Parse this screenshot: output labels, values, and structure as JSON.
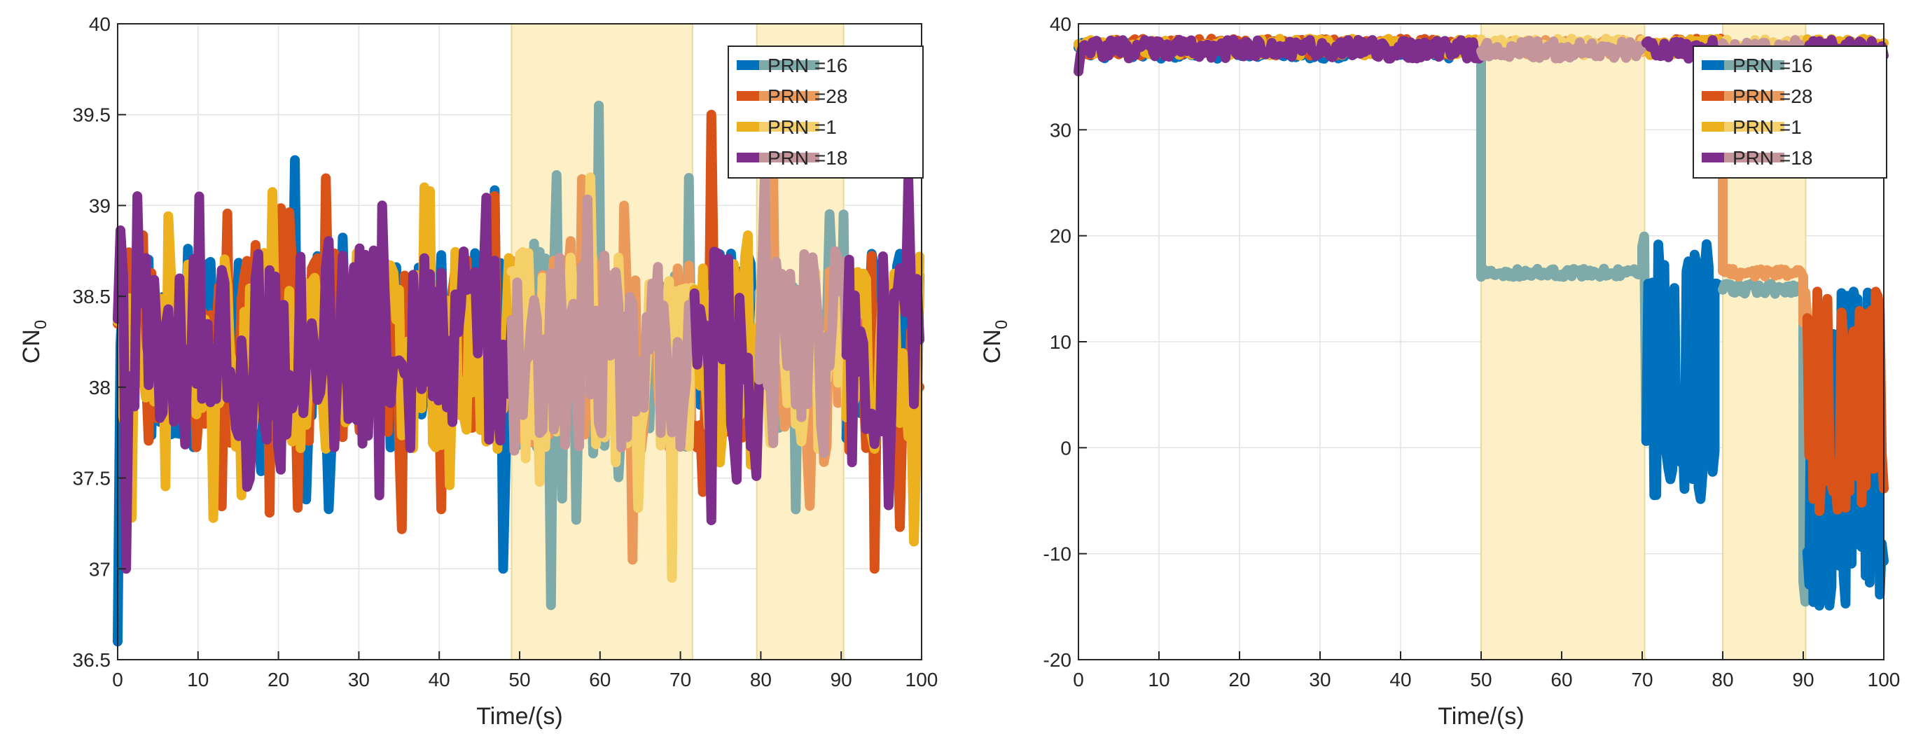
{
  "chart_data": [
    {
      "type": "line",
      "title": "",
      "xlabel": "Time/(s)",
      "ylabel_main": "CN",
      "ylabel_sub": "0",
      "xlim": [
        0,
        100
      ],
      "ylim": [
        36.5,
        40
      ],
      "xticks": [
        0,
        10,
        20,
        30,
        40,
        50,
        60,
        70,
        80,
        90,
        100
      ],
      "yticks": [
        36.5,
        37,
        37.5,
        38,
        38.5,
        39,
        39.5,
        40
      ],
      "ytick_labels": [
        "36.5",
        "37",
        "37.5",
        "38",
        "38.5",
        "39",
        "39.5",
        "40"
      ],
      "grid": true,
      "legend_position": "top-right",
      "shaded_regions": [
        [
          49,
          71.5
        ],
        [
          79.5,
          90.3
        ]
      ],
      "series": [
        {
          "name": "PRN =16",
          "color": "#0072BD",
          "color_in_shade": "#7FAAAA",
          "base": 38.2,
          "amp": 0.55,
          "notes": [
            [
              0,
              36.6
            ],
            [
              22,
              39.25
            ],
            [
              60,
              39.55
            ],
            [
              54,
              36.8
            ],
            [
              48,
              37.0
            ]
          ]
        },
        {
          "name": "PRN =28",
          "color": "#D95319",
          "color_in_shade": "#EC9A5C",
          "base": 38.2,
          "amp": 0.55,
          "notes": [
            [
              74,
              39.5
            ],
            [
              26,
              39.15
            ],
            [
              94,
              37.0
            ],
            [
              64,
              37.05
            ]
          ]
        },
        {
          "name": "PRN =1",
          "color": "#EDB120",
          "color_in_shade": "#F5CF6A",
          "base": 38.2,
          "amp": 0.55,
          "notes": [
            [
              38,
              39.1
            ],
            [
              69,
              36.95
            ],
            [
              99,
              37.15
            ]
          ]
        },
        {
          "name": "PRN =18",
          "color": "#7E2F8E",
          "color_in_shade": "#C4959A",
          "base": 38.2,
          "amp": 0.55,
          "notes": [
            [
              10,
              39.05
            ],
            [
              33,
              39.0
            ],
            [
              1,
              37.0
            ]
          ]
        }
      ]
    },
    {
      "type": "line",
      "title": "",
      "xlabel": "Time/(s)",
      "ylabel_main": "CN",
      "ylabel_sub": "0",
      "xlim": [
        0,
        100
      ],
      "ylim": [
        -20,
        40
      ],
      "xticks": [
        0,
        10,
        20,
        30,
        40,
        50,
        60,
        70,
        80,
        90,
        100
      ],
      "yticks": [
        -20,
        -10,
        0,
        10,
        20,
        30,
        40
      ],
      "ytick_labels": [
        "-20",
        "-10",
        "0",
        "10",
        "20",
        "30",
        "40"
      ],
      "grid": true,
      "legend_position": "top-right",
      "shaded_regions": [
        [
          50,
          70.3
        ],
        [
          80,
          90.3
        ]
      ],
      "series": [
        {
          "name": "PRN =16",
          "color": "#0072BD",
          "color_in_shade": "#7FAAAA",
          "segments": [
            {
              "x": [
                0,
                49.8
              ],
              "level": 37.5,
              "amp": 0.8
            },
            {
              "x": [
                50,
                70
              ],
              "level": 16.5,
              "amp": 0.4,
              "jump_from": 37.5
            },
            {
              "x": [
                70,
                79
              ],
              "level": 8.0,
              "amp": 12.0,
              "min": -5,
              "max": 20
            },
            {
              "x": [
                79,
                90
              ],
              "level": 15.0,
              "amp": 0.5
            },
            {
              "x": [
                90,
                100
              ],
              "level": 6.0,
              "amp": 9.0,
              "min": -15,
              "max": 15
            }
          ]
        },
        {
          "name": "PRN =28",
          "color": "#D95319",
          "color_in_shade": "#EC9A5C",
          "segments": [
            {
              "x": [
                0,
                79.8
              ],
              "level": 37.8,
              "amp": 0.8
            },
            {
              "x": [
                80,
                90
              ],
              "level": 16.5,
              "amp": 0.4,
              "jump_from": 37.8
            },
            {
              "x": [
                90,
                100
              ],
              "level": 9.0,
              "amp": 6.0,
              "min": -6,
              "max": 15
            }
          ]
        },
        {
          "name": "PRN =1",
          "color": "#EDB120",
          "color_in_shade": "#F5CF6A",
          "segments": [
            {
              "x": [
                0,
                100
              ],
              "level": 37.8,
              "amp": 0.8
            }
          ]
        },
        {
          "name": "PRN =18",
          "color": "#7E2F8E",
          "color_in_shade": "#C4959A",
          "segments": [
            {
              "x": [
                0,
                100
              ],
              "level": 37.6,
              "amp": 0.9,
              "start": 35.5
            }
          ]
        }
      ]
    }
  ]
}
